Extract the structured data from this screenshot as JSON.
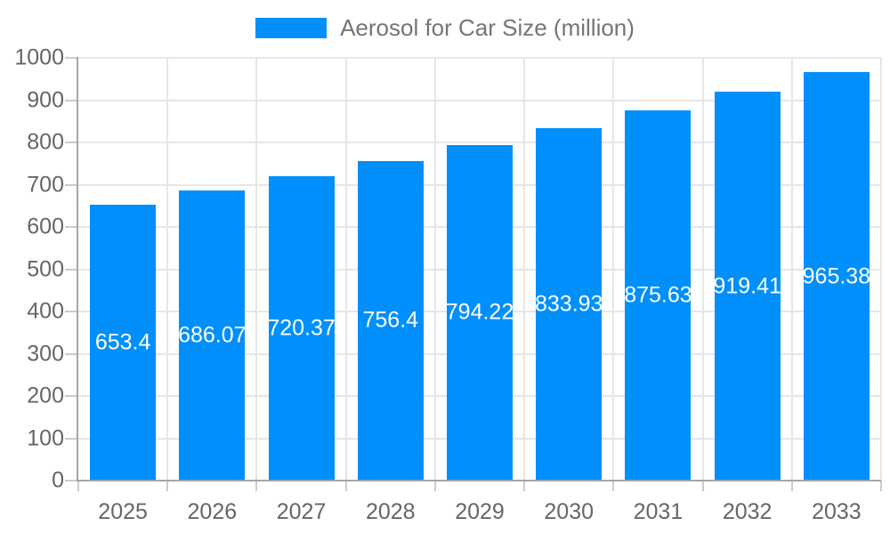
{
  "legend": {
    "label": "Aerosol for Car Size (million)"
  },
  "palette": {
    "bar": "#008FFB",
    "grid": "#e6e6e6",
    "tick": "#cccccc",
    "axis_line": "#a6a6a6",
    "axis_text": "#666666",
    "legend_text": "#757575",
    "data_label": "#ffffff",
    "background": "#ffffff"
  },
  "chart_data": {
    "type": "bar",
    "title": "Aerosol for Car Size (million)",
    "categories": [
      "2025",
      "2026",
      "2027",
      "2028",
      "2029",
      "2030",
      "2031",
      "2032",
      "2033"
    ],
    "series": [
      {
        "name": "Aerosol for Car Size (million)",
        "values": [
          653.4,
          686.07,
          720.37,
          756.4,
          794.22,
          833.93,
          875.63,
          919.41,
          965.38
        ]
      }
    ],
    "value_labels": [
      "653.4",
      "686.07",
      "720.37",
      "756.4",
      "794.22",
      "833.93",
      "875.63",
      "919.41",
      "965.38"
    ],
    "xlabel": "",
    "ylabel": "",
    "ylim": [
      0,
      1000
    ],
    "ytick_interval": 100,
    "ytick_labels": [
      "0",
      "100",
      "200",
      "300",
      "400",
      "500",
      "600",
      "700",
      "800",
      "900",
      "1000"
    ],
    "grid": true,
    "legend_position": "top"
  }
}
